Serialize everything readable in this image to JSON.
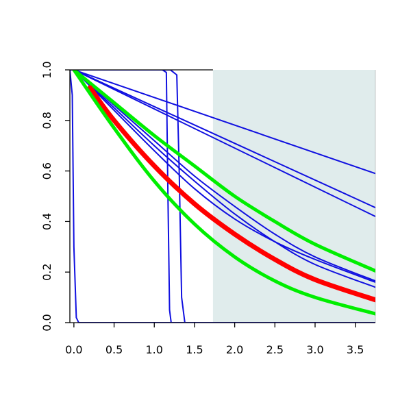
{
  "chart_data": {
    "type": "line",
    "title": "",
    "xlabel": "",
    "ylabel": "",
    "xlim": [
      -0.05,
      3.75
    ],
    "ylim": [
      0.0,
      1.0
    ],
    "x_ticks": [
      "0.0",
      "0.5",
      "1.0",
      "1.5",
      "2.0",
      "2.5",
      "3.0",
      "3.5"
    ],
    "y_ticks": [
      "0.0",
      "0.2",
      "0.4",
      "0.6",
      "0.8",
      "1.0"
    ],
    "grid": false,
    "shaded_region": {
      "x_range": [
        1.73,
        3.75
      ],
      "color": "#e0ecec"
    },
    "colors": {
      "blue": "#1010e0",
      "red": "#ff0000",
      "green": "#00ee00"
    },
    "series": [
      {
        "color": "blue",
        "width": 2,
        "kind": "line",
        "points": [
          [
            0,
            1
          ],
          [
            3.75,
            0.59
          ]
        ]
      },
      {
        "color": "blue",
        "width": 2,
        "kind": "line",
        "points": [
          [
            0,
            1
          ],
          [
            3.75,
            0.455
          ]
        ]
      },
      {
        "color": "blue",
        "width": 2,
        "kind": "line",
        "points": [
          [
            0,
            1
          ],
          [
            3.75,
            0.42
          ]
        ]
      },
      {
        "color": "blue",
        "width": 2,
        "kind": "curve",
        "points": [
          [
            0,
            1
          ],
          [
            0.5,
            0.86
          ],
          [
            1.0,
            0.72
          ],
          [
            1.5,
            0.58
          ],
          [
            2.0,
            0.46
          ],
          [
            2.5,
            0.35
          ],
          [
            3.0,
            0.26
          ],
          [
            3.75,
            0.165
          ]
        ]
      },
      {
        "color": "blue",
        "width": 2,
        "kind": "curve",
        "points": [
          [
            0,
            1
          ],
          [
            0.5,
            0.85
          ],
          [
            1.0,
            0.7
          ],
          [
            1.5,
            0.56
          ],
          [
            2.0,
            0.43
          ],
          [
            2.5,
            0.32
          ],
          [
            3.0,
            0.23
          ],
          [
            3.75,
            0.14
          ]
        ]
      },
      {
        "color": "blue",
        "width": 2,
        "kind": "curve",
        "points": [
          [
            0,
            1
          ],
          [
            0.5,
            0.84
          ],
          [
            1.0,
            0.68
          ],
          [
            1.5,
            0.53
          ],
          [
            2.0,
            0.41
          ],
          [
            2.5,
            0.32
          ],
          [
            3.0,
            0.25
          ],
          [
            3.75,
            0.16
          ]
        ]
      },
      {
        "color": "blue",
        "width": 2,
        "kind": "step",
        "points": [
          [
            -0.05,
            1
          ],
          [
            -0.02,
            0.9
          ],
          [
            0.0,
            0.3
          ],
          [
            0.03,
            0.02
          ],
          [
            0.06,
            0.0
          ],
          [
            3.75,
            0.0
          ]
        ]
      },
      {
        "color": "blue",
        "width": 2,
        "kind": "step",
        "points": [
          [
            -0.05,
            1
          ],
          [
            1.1,
            1
          ],
          [
            1.15,
            0.99
          ],
          [
            1.17,
            0.5
          ],
          [
            1.19,
            0.05
          ],
          [
            1.21,
            0.0
          ],
          [
            3.75,
            0.0
          ]
        ]
      },
      {
        "color": "blue",
        "width": 2,
        "kind": "step",
        "points": [
          [
            -0.05,
            1
          ],
          [
            1.2,
            1
          ],
          [
            1.28,
            0.98
          ],
          [
            1.31,
            0.6
          ],
          [
            1.34,
            0.1
          ],
          [
            1.38,
            0.0
          ],
          [
            3.75,
            0.0
          ]
        ]
      },
      {
        "color": "green",
        "width": 5,
        "kind": "curve",
        "points": [
          [
            0,
            1
          ],
          [
            0.5,
            0.87
          ],
          [
            1.0,
            0.74
          ],
          [
            1.5,
            0.62
          ],
          [
            2.0,
            0.5
          ],
          [
            2.5,
            0.4
          ],
          [
            3.0,
            0.31
          ],
          [
            3.75,
            0.205
          ]
        ]
      },
      {
        "color": "red",
        "width": 7,
        "kind": "curve",
        "points": [
          [
            0.2,
            0.93
          ],
          [
            0.5,
            0.8
          ],
          [
            1.0,
            0.62
          ],
          [
            1.5,
            0.47
          ],
          [
            2.0,
            0.35
          ],
          [
            2.5,
            0.25
          ],
          [
            3.0,
            0.17
          ],
          [
            3.75,
            0.09
          ]
        ]
      },
      {
        "color": "green",
        "width": 5,
        "kind": "curve",
        "points": [
          [
            0,
            1
          ],
          [
            0.5,
            0.77
          ],
          [
            1.0,
            0.56
          ],
          [
            1.5,
            0.39
          ],
          [
            2.0,
            0.26
          ],
          [
            2.5,
            0.165
          ],
          [
            3.0,
            0.1
          ],
          [
            3.75,
            0.035
          ]
        ]
      }
    ]
  }
}
